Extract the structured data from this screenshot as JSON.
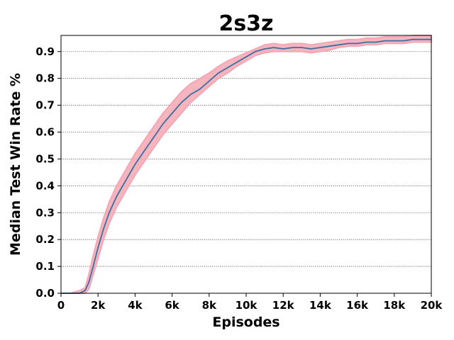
{
  "chart_data": {
    "type": "line",
    "title": "2s3z",
    "xlabel": "Episodes",
    "ylabel": "Median Test Win Rate %",
    "xlim": [
      0,
      20000
    ],
    "ylim": [
      0,
      0.96
    ],
    "xticks": [
      0,
      2000,
      4000,
      6000,
      8000,
      10000,
      12000,
      14000,
      16000,
      18000,
      20000
    ],
    "xtick_labels": [
      "0",
      "2k",
      "4k",
      "6k",
      "8k",
      "10k",
      "12k",
      "14k",
      "16k",
      "18k",
      "20k"
    ],
    "yticks": [
      0.0,
      0.1,
      0.2,
      0.3,
      0.4,
      0.5,
      0.6,
      0.7,
      0.8,
      0.9
    ],
    "ytick_labels": [
      "0.0",
      "0.1",
      "0.2",
      "0.3",
      "0.4",
      "0.5",
      "0.6",
      "0.7",
      "0.8",
      "0.9"
    ],
    "grid": "horizontal dotted",
    "colors": {
      "line": "#3a6fa0",
      "band": "#f4a7b4"
    },
    "series": [
      {
        "x": [
          0,
          500,
          1000,
          1300,
          1500,
          1700,
          2000,
          2300,
          2600,
          3000,
          3500,
          4000,
          4500,
          5000,
          5500,
          6000,
          6500,
          7000,
          7500,
          8000,
          8500,
          9000,
          9500,
          10000,
          10500,
          11000,
          11500,
          12000,
          12500,
          13000,
          13500,
          14000,
          14500,
          15000,
          15500,
          16000,
          16500,
          17000,
          17500,
          18000,
          18500,
          19000,
          19500,
          20000
        ],
        "median": [
          0.0,
          0.0,
          0.0,
          0.01,
          0.04,
          0.09,
          0.17,
          0.24,
          0.3,
          0.36,
          0.42,
          0.48,
          0.53,
          0.58,
          0.63,
          0.67,
          0.71,
          0.74,
          0.76,
          0.79,
          0.82,
          0.84,
          0.86,
          0.88,
          0.9,
          0.91,
          0.915,
          0.91,
          0.915,
          0.915,
          0.91,
          0.915,
          0.92,
          0.925,
          0.93,
          0.93,
          0.935,
          0.935,
          0.94,
          0.94,
          0.94,
          0.945,
          0.945,
          0.945
        ],
        "lower": [
          0.0,
          0.0,
          0.0,
          0.0,
          0.015,
          0.06,
          0.13,
          0.2,
          0.26,
          0.32,
          0.38,
          0.44,
          0.49,
          0.54,
          0.59,
          0.63,
          0.67,
          0.71,
          0.74,
          0.77,
          0.8,
          0.82,
          0.845,
          0.865,
          0.885,
          0.895,
          0.9,
          0.9,
          0.9,
          0.9,
          0.895,
          0.9,
          0.905,
          0.915,
          0.92,
          0.92,
          0.925,
          0.925,
          0.93,
          0.93,
          0.93,
          0.935,
          0.935,
          0.935
        ],
        "upper": [
          0.0,
          0.0,
          0.01,
          0.02,
          0.07,
          0.13,
          0.21,
          0.28,
          0.34,
          0.4,
          0.46,
          0.52,
          0.57,
          0.62,
          0.67,
          0.71,
          0.75,
          0.78,
          0.8,
          0.82,
          0.845,
          0.865,
          0.88,
          0.895,
          0.91,
          0.925,
          0.93,
          0.925,
          0.93,
          0.93,
          0.925,
          0.93,
          0.935,
          0.94,
          0.945,
          0.945,
          0.95,
          0.95,
          0.955,
          0.955,
          0.955,
          0.96,
          0.96,
          0.96
        ]
      }
    ]
  }
}
